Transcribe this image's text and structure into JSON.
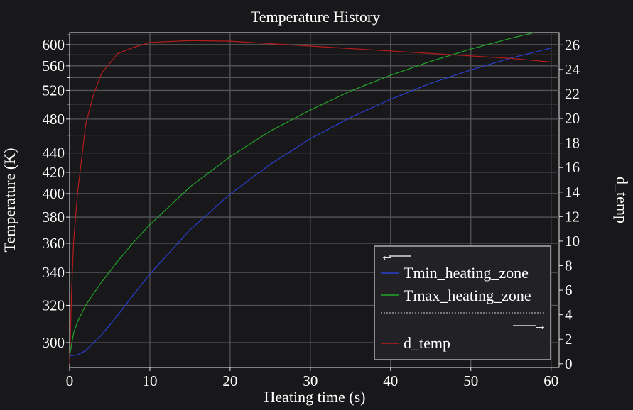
{
  "chart_data": {
    "type": "line",
    "title": "Temperature History",
    "xlabel": "Heating time (s)",
    "ylabel_left": "Temperature (K)",
    "ylabel_right": "d_temp",
    "xlim": [
      0,
      61
    ],
    "ylim_left": [
      288,
      625
    ],
    "ylim_left_scale": "reciprocal",
    "ylim_right": [
      -0.3,
      27
    ],
    "x_ticks": [
      0,
      10,
      20,
      30,
      40,
      50,
      60
    ],
    "y_left_ticks": [
      300,
      320,
      340,
      360,
      380,
      400,
      420,
      440,
      480,
      520,
      560,
      600
    ],
    "y_left_minor_ticks": [
      460,
      500,
      540,
      580,
      620
    ],
    "y_right_ticks": [
      0,
      2,
      4,
      6,
      8,
      10,
      12,
      14,
      16,
      18,
      20,
      22,
      24,
      26
    ],
    "grid": true,
    "legend": {
      "placement": "lower-right",
      "left_axis_arrow": "←",
      "right_axis_arrow": "→",
      "entries": [
        "Tmin_heating_zone",
        "Tmax_heating_zone",
        "d_temp"
      ]
    },
    "series": [
      {
        "name": "Tmin_heating_zone",
        "axis": "left",
        "color": "#2b3fd1",
        "x": [
          0,
          1,
          2,
          3,
          4,
          6,
          8,
          10,
          15,
          20,
          25,
          30,
          35,
          40,
          45,
          50,
          55,
          60
        ],
        "y": [
          293.5,
          294,
          296,
          300,
          304,
          314.5,
          326.5,
          339,
          370,
          399.5,
          428,
          456,
          482,
          507,
          531,
          553,
          574,
          593
        ]
      },
      {
        "name": "Tmax_heating_zone",
        "axis": "left",
        "color": "#22a32a",
        "x": [
          0,
          0.5,
          1,
          2,
          3,
          4,
          6,
          8,
          10,
          15,
          20,
          25,
          30,
          35,
          40,
          45,
          50,
          55,
          60
        ],
        "y": [
          293.5,
          305,
          311,
          320,
          327,
          334,
          347.5,
          361,
          374,
          406,
          436,
          465,
          492,
          519,
          544,
          568,
          591,
          613,
          634
        ]
      },
      {
        "name": "d_temp",
        "axis": "right",
        "color": "#b51c1c",
        "x": [
          0,
          0.25,
          0.5,
          1,
          2,
          3,
          4,
          5,
          6,
          8,
          10,
          15,
          20,
          25,
          30,
          35,
          40,
          45,
          50,
          55,
          60
        ],
        "y": [
          0,
          6,
          10,
          14,
          19.5,
          22,
          23.7,
          24.5,
          25.3,
          25.8,
          26.2,
          26.35,
          26.3,
          26.1,
          25.9,
          25.7,
          25.5,
          25.3,
          25.1,
          24.9,
          24.6
        ]
      }
    ]
  }
}
